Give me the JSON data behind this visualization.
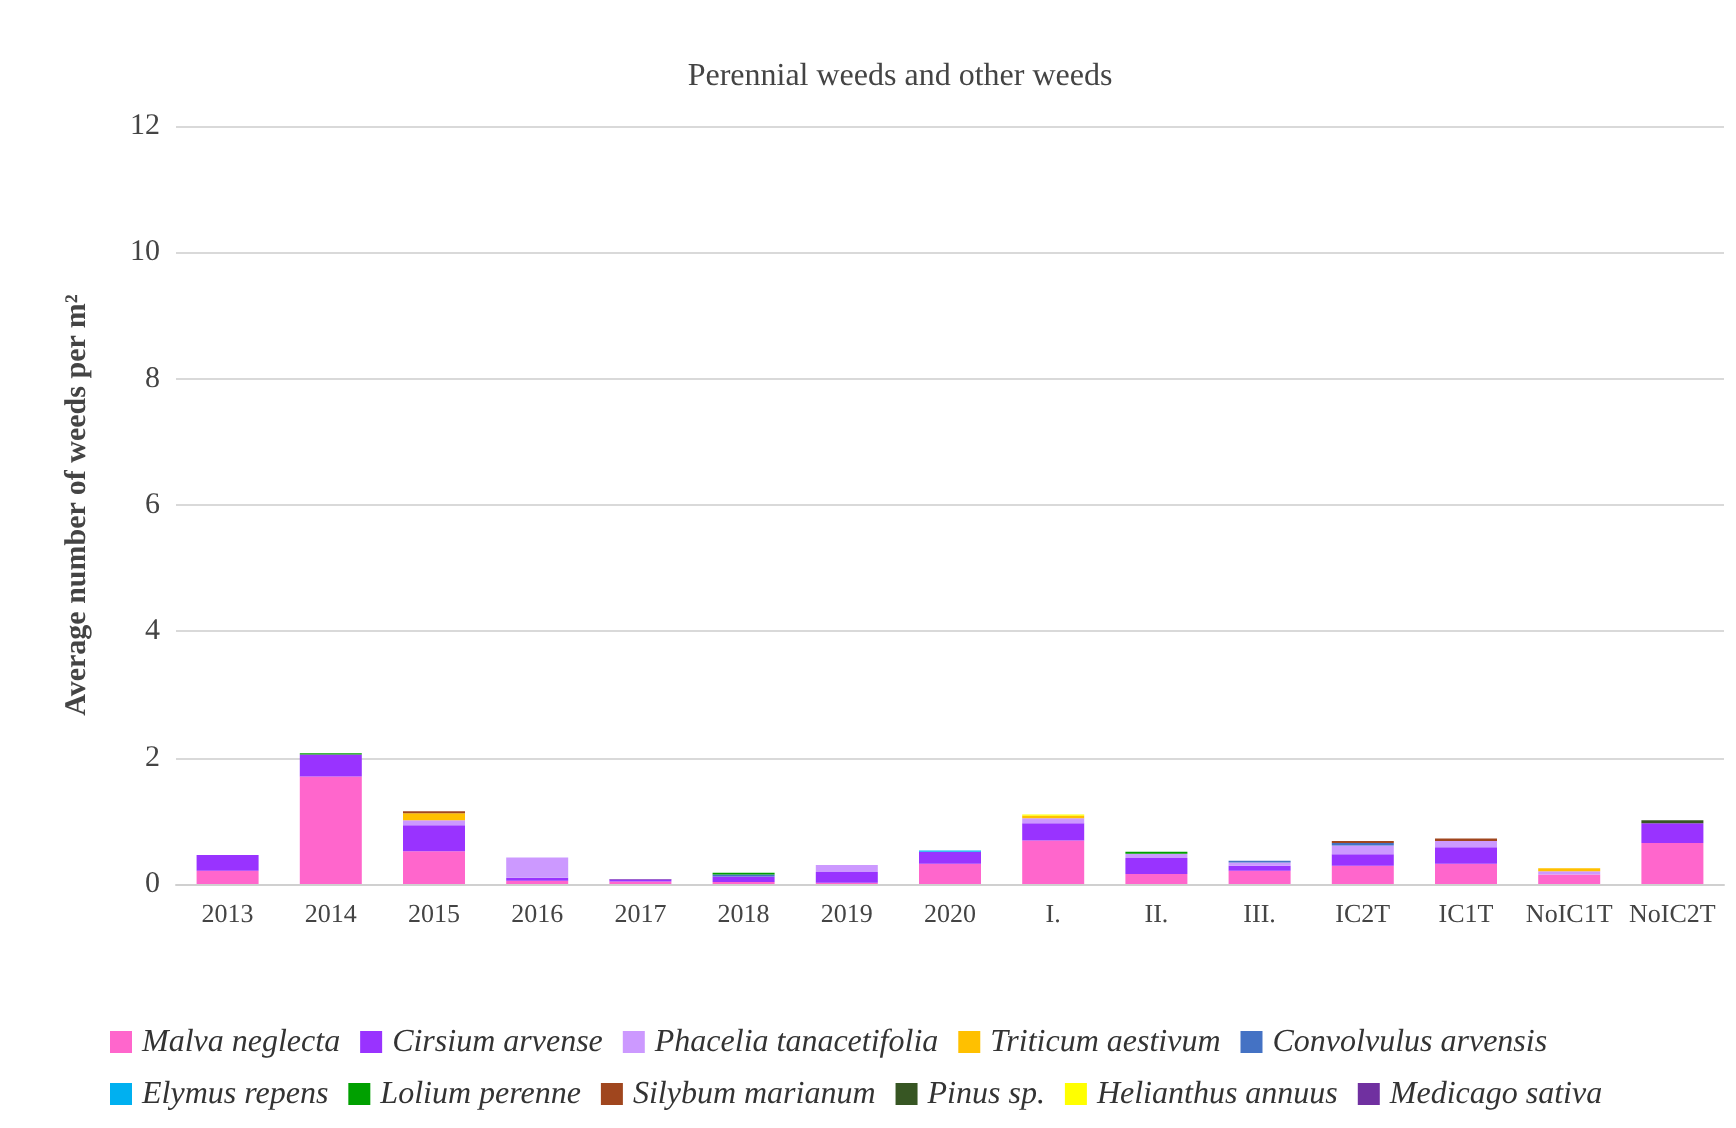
{
  "chart_data": {
    "type": "bar",
    "title": "Perennial weeds and other weeds",
    "ylabel": "Average number of weeds per m²",
    "categories": [
      "2013",
      "2014",
      "2015",
      "2016",
      "2017",
      "2018",
      "2019",
      "2020",
      "I.",
      "II.",
      "III.",
      "IC2T",
      "IC1T",
      "NoIC1T",
      "NoIC2T"
    ],
    "stacked": true,
    "ylim": [
      0,
      12
    ],
    "yticks": [
      0,
      2,
      4,
      6,
      8,
      10,
      12
    ],
    "grid": "y",
    "legend": "bottom",
    "series": [
      {
        "name": "Malva neglecta",
        "color": "#ff66cc",
        "values": [
          0.21,
          1.7,
          0.52,
          0.05,
          0.04,
          0.03,
          0.02,
          0.32,
          0.69,
          0.16,
          0.21,
          0.29,
          0.32,
          0.15,
          0.65
        ]
      },
      {
        "name": "Cirsium arvense",
        "color": "#9933ff",
        "values": [
          0.25,
          0.35,
          0.41,
          0.05,
          0.03,
          0.09,
          0.17,
          0.19,
          0.27,
          0.25,
          0.08,
          0.18,
          0.26,
          null,
          0.31
        ]
      },
      {
        "name": "Phacelia tanacetifolia",
        "color": "#cc99ff",
        "values": [
          null,
          null,
          0.08,
          0.32,
          null,
          null,
          0.11,
          null,
          0.08,
          0.07,
          0.05,
          0.14,
          0.1,
          0.05,
          null
        ]
      },
      {
        "name": "Triticum aestivum",
        "color": "#ffc000",
        "values": [
          null,
          null,
          0.11,
          null,
          null,
          null,
          null,
          null,
          0.04,
          null,
          null,
          null,
          null,
          0.05,
          null
        ]
      },
      {
        "name": "Convolvulus arvensis",
        "color": "#4472c4",
        "values": [
          null,
          null,
          null,
          null,
          null,
          0.03,
          null,
          null,
          null,
          null,
          0.03,
          0.04,
          null,
          null,
          null
        ]
      },
      {
        "name": "Elymus repens",
        "color": "#00b0f0",
        "values": [
          null,
          null,
          null,
          null,
          null,
          null,
          null,
          0.02,
          null,
          null,
          null,
          null,
          null,
          null,
          null
        ]
      },
      {
        "name": "Lolium perenne",
        "color": "#00a000",
        "values": [
          null,
          0.02,
          null,
          null,
          null,
          0.03,
          null,
          null,
          null,
          0.03,
          null,
          null,
          null,
          null,
          null
        ]
      },
      {
        "name": "Silybum marianum",
        "color": "#a0461e",
        "values": [
          null,
          null,
          0.03,
          null,
          null,
          null,
          null,
          null,
          null,
          null,
          null,
          0.03,
          0.04,
          null,
          null
        ]
      },
      {
        "name": "Pinus sp.",
        "color": "#375623",
        "values": [
          null,
          null,
          null,
          null,
          null,
          null,
          null,
          null,
          null,
          null,
          null,
          null,
          null,
          null,
          0.05
        ]
      },
      {
        "name": "Helianthus annuus",
        "color": "#ffff00",
        "values": [
          null,
          null,
          null,
          null,
          null,
          null,
          null,
          null,
          0.02,
          null,
          null,
          null,
          null,
          null,
          null
        ]
      },
      {
        "name": "Medicago sativa",
        "color": "#7030a0",
        "values": [
          null,
          null,
          null,
          null,
          0.01,
          null,
          null,
          null,
          null,
          null,
          null,
          null,
          null,
          null,
          null
        ]
      }
    ]
  }
}
